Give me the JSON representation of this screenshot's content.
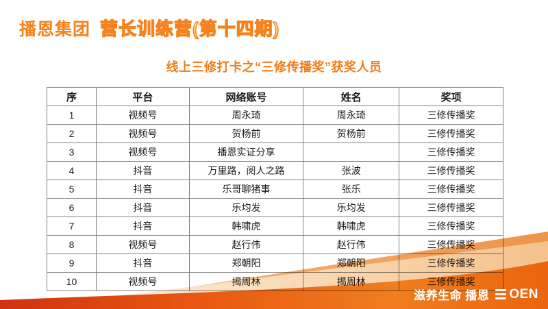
{
  "header": {
    "brand": "播恩集团",
    "program": "营长训练营(第十四期)"
  },
  "title": "线上三修打卡之“三修传播奖”获奖人员",
  "table": {
    "columns": [
      "序",
      "平台",
      "网络账号",
      "姓名",
      "奖项"
    ],
    "rows": [
      [
        "1",
        "视频号",
        "周永琦",
        "周永琦",
        "三修传播奖"
      ],
      [
        "2",
        "视频号",
        "贺杨前",
        "贺杨前",
        "三修传播奖"
      ],
      [
        "3",
        "视频号",
        "播恩实证分享",
        "",
        "三修传播奖"
      ],
      [
        "4",
        "抖音",
        "万里路，阅人之路",
        "张波",
        "三修传播奖"
      ],
      [
        "5",
        "抖音",
        "乐哥聊猪事",
        "张乐",
        "三修传播奖"
      ],
      [
        "6",
        "抖音",
        "乐均发",
        "乐均发",
        "三修传播奖"
      ],
      [
        "7",
        "抖音",
        "韩啸虎",
        "韩啸虎",
        "三修传播奖"
      ],
      [
        "8",
        "视频号",
        "赵行伟",
        "赵行伟",
        "三修传播奖"
      ],
      [
        "9",
        "抖音",
        "郑朝阳",
        "郑朝阳",
        "三修传播奖"
      ],
      [
        "10",
        "视频号",
        "揭周林",
        "揭周林",
        "三修传播奖"
      ]
    ]
  },
  "footer": {
    "slogan": "滋养生命 播恩",
    "brand_mark_icon": "boen-stripe-b-icon",
    "brand_letters": "OEN"
  },
  "colors": {
    "accent_orange": "#f5821c",
    "title_orange": "#f57b17",
    "text": "#1c1c1c",
    "table_border": "#808080",
    "wave_cream": "#fdf5e6",
    "wave_peach": "#f5c28c",
    "wave_orange": "#ee9548",
    "wave_deep_red": "#cf3310",
    "wave_bright_orange": "#f07d1e",
    "logo_white": "#ffffff"
  }
}
